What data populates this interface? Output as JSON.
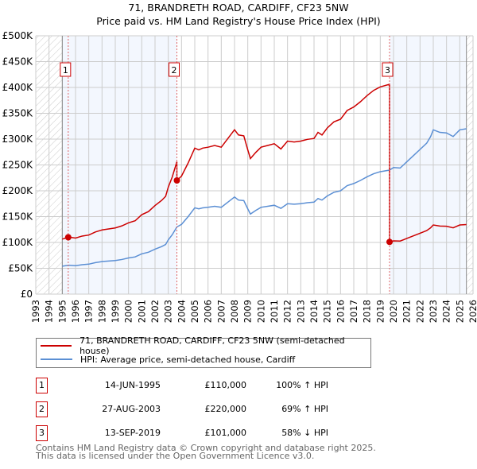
{
  "chart_data": {
    "type": "line",
    "title": "71, BRANDRETH ROAD, CARDIFF, CF23 5NW",
    "subtitle": "Price paid vs. HM Land Registry's House Price Index (HPI)",
    "xlabel": "",
    "ylabel": "",
    "xlim": [
      1993,
      2026
    ],
    "ylim": [
      0,
      500000
    ],
    "grid": true,
    "y_ticks": [
      0,
      50000,
      100000,
      150000,
      200000,
      250000,
      300000,
      350000,
      400000,
      450000,
      500000
    ],
    "y_tick_labels": [
      "£0",
      "£50K",
      "£100K",
      "£150K",
      "£200K",
      "£250K",
      "£300K",
      "£350K",
      "£400K",
      "£450K",
      "£500K"
    ],
    "x_ticks": [
      1993,
      1994,
      1995,
      1996,
      1997,
      1998,
      1999,
      2000,
      2001,
      2002,
      2003,
      2004,
      2005,
      2006,
      2007,
      2008,
      2009,
      2010,
      2011,
      2012,
      2013,
      2014,
      2015,
      2016,
      2017,
      2018,
      2019,
      2020,
      2021,
      2022,
      2023,
      2024,
      2025,
      2026
    ],
    "data_range": [
      1995,
      2025.5
    ],
    "legend_position": "below",
    "series": [
      {
        "name": "71, BRANDRETH ROAD, CARDIFF, CF23 5NW (semi-detached house)",
        "color": "#cc0000",
        "derived_from": "HPI indexed to each sale"
      },
      {
        "name": "HPI: Average price, semi-detached house, Cardiff",
        "color": "#5b8fd4",
        "x": [
          1995,
          1995.5,
          1996,
          1996.5,
          1997,
          1997.5,
          1998,
          1998.5,
          1999,
          1999.5,
          2000,
          2000.5,
          2001,
          2001.5,
          2002,
          2002.5,
          2002.8,
          2003,
          2003.3,
          2003.65,
          2004,
          2004.5,
          2005,
          2005.3,
          2005.6,
          2006,
          2006.5,
          2007,
          2007.5,
          2008,
          2008.3,
          2008.7,
          2009,
          2009.2,
          2009.6,
          2010,
          2010.5,
          2011,
          2011.5,
          2012,
          2012.5,
          2013,
          2013.5,
          2014,
          2014.3,
          2014.6,
          2015,
          2015.5,
          2016,
          2016.5,
          2017,
          2017.5,
          2018,
          2018.5,
          2019,
          2019.7,
          2020,
          2020.5,
          2021,
          2021.5,
          2022,
          2022.5,
          2022.8,
          2023,
          2023.5,
          2024,
          2024.5,
          2025,
          2025.5
        ],
        "values": [
          54000,
          56000,
          55000,
          57000,
          58000,
          61000,
          63000,
          64000,
          65000,
          67000,
          70000,
          72000,
          78000,
          81000,
          87000,
          92000,
          96000,
          105000,
          115000,
          130000,
          135000,
          150000,
          167000,
          165000,
          167000,
          168000,
          170000,
          168000,
          178000,
          188000,
          182000,
          181000,
          165000,
          155000,
          162000,
          168000,
          170000,
          172000,
          166000,
          175000,
          174000,
          175000,
          177000,
          178000,
          185000,
          182000,
          190000,
          197000,
          200000,
          210000,
          214000,
          220000,
          227000,
          233000,
          237000,
          240000,
          245000,
          244000,
          256000,
          268000,
          280000,
          292000,
          305000,
          318000,
          313000,
          312000,
          305000,
          318000,
          320000
        ]
      }
    ],
    "sales": [
      {
        "label": "1",
        "x": 1995.45,
        "price": 110000,
        "date": "14-JUN-1995",
        "price_text": "£110,000",
        "hpi_text": "100% ↑ HPI"
      },
      {
        "label": "2",
        "x": 2003.65,
        "price": 220000,
        "date": "27-AUG-2003",
        "price_text": "£220,000",
        "hpi_text": "69% ↑ HPI"
      },
      {
        "label": "3",
        "x": 2019.7,
        "price": 101000,
        "date": "13-SEP-2019",
        "price_text": "£101,000",
        "hpi_text": "58% ↓ HPI"
      }
    ]
  },
  "legend": {
    "property": "71, BRANDRETH ROAD, CARDIFF, CF23 5NW (semi-detached house)",
    "hpi": "HPI: Average price, semi-detached house, Cardiff"
  },
  "footer": {
    "line1": "Contains HM Land Registry data © Crown copyright and database right 2025.",
    "line2": "This data is licensed under the Open Government Licence v3.0."
  }
}
